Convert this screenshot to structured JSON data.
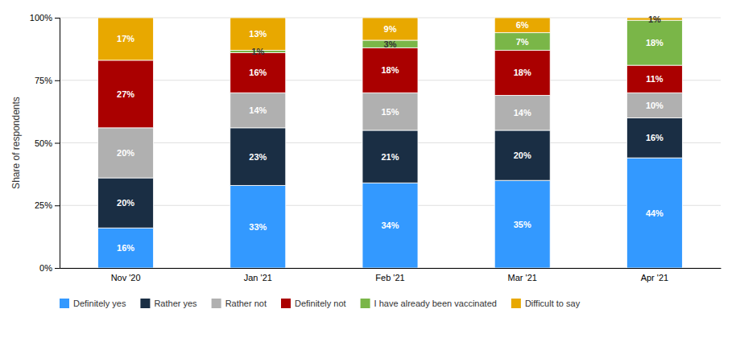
{
  "chart_data": {
    "type": "bar",
    "stacked": true,
    "categories": [
      "Nov '20",
      "Jan '21",
      "Feb '21",
      "Mar '21",
      "Apr '21"
    ],
    "series": [
      {
        "name": "Definitely yes",
        "color": "#3399ff",
        "values": [
          16,
          33,
          34,
          35,
          44
        ],
        "value_labels": [
          "16%",
          "33%",
          "34%",
          "35%",
          "44%"
        ]
      },
      {
        "name": "Rather yes",
        "color": "#1a2e44",
        "values": [
          20,
          23,
          21,
          20,
          16
        ],
        "value_labels": [
          "20%",
          "23%",
          "21%",
          "20%",
          "16%"
        ]
      },
      {
        "name": "Rather not",
        "color": "#b0b0b0",
        "values": [
          20,
          14,
          15,
          14,
          10
        ],
        "value_labels": [
          "20%",
          "14%",
          "15%",
          "14%",
          "10%"
        ]
      },
      {
        "name": "Definitely not",
        "color": "#aa0000",
        "values": [
          27,
          16,
          18,
          18,
          11
        ],
        "value_labels": [
          "27%",
          "16%",
          "18%",
          "18%",
          "11%"
        ]
      },
      {
        "name": "I have already been vaccinated",
        "color": "#7ab648",
        "values": [
          0,
          1,
          3,
          7,
          18
        ],
        "value_labels": [
          null,
          "1%",
          "3%",
          "7%",
          "18%"
        ]
      },
      {
        "name": "Difficult to say",
        "color": "#e8a800",
        "values": [
          17,
          13,
          9,
          6,
          1
        ],
        "value_labels": [
          "17%",
          "13%",
          "9%",
          "6%",
          "1%"
        ]
      }
    ],
    "ylabel": "Share of respondents",
    "ylim": [
      0,
      100
    ],
    "yticks": [
      {
        "value": 0,
        "label": "0%"
      },
      {
        "value": 25,
        "label": "25%"
      },
      {
        "value": 50,
        "label": "50%"
      },
      {
        "value": 75,
        "label": "75%"
      },
      {
        "value": 100,
        "label": "100%"
      }
    ],
    "grid": true,
    "data_labels": true,
    "legend": "bottom"
  }
}
